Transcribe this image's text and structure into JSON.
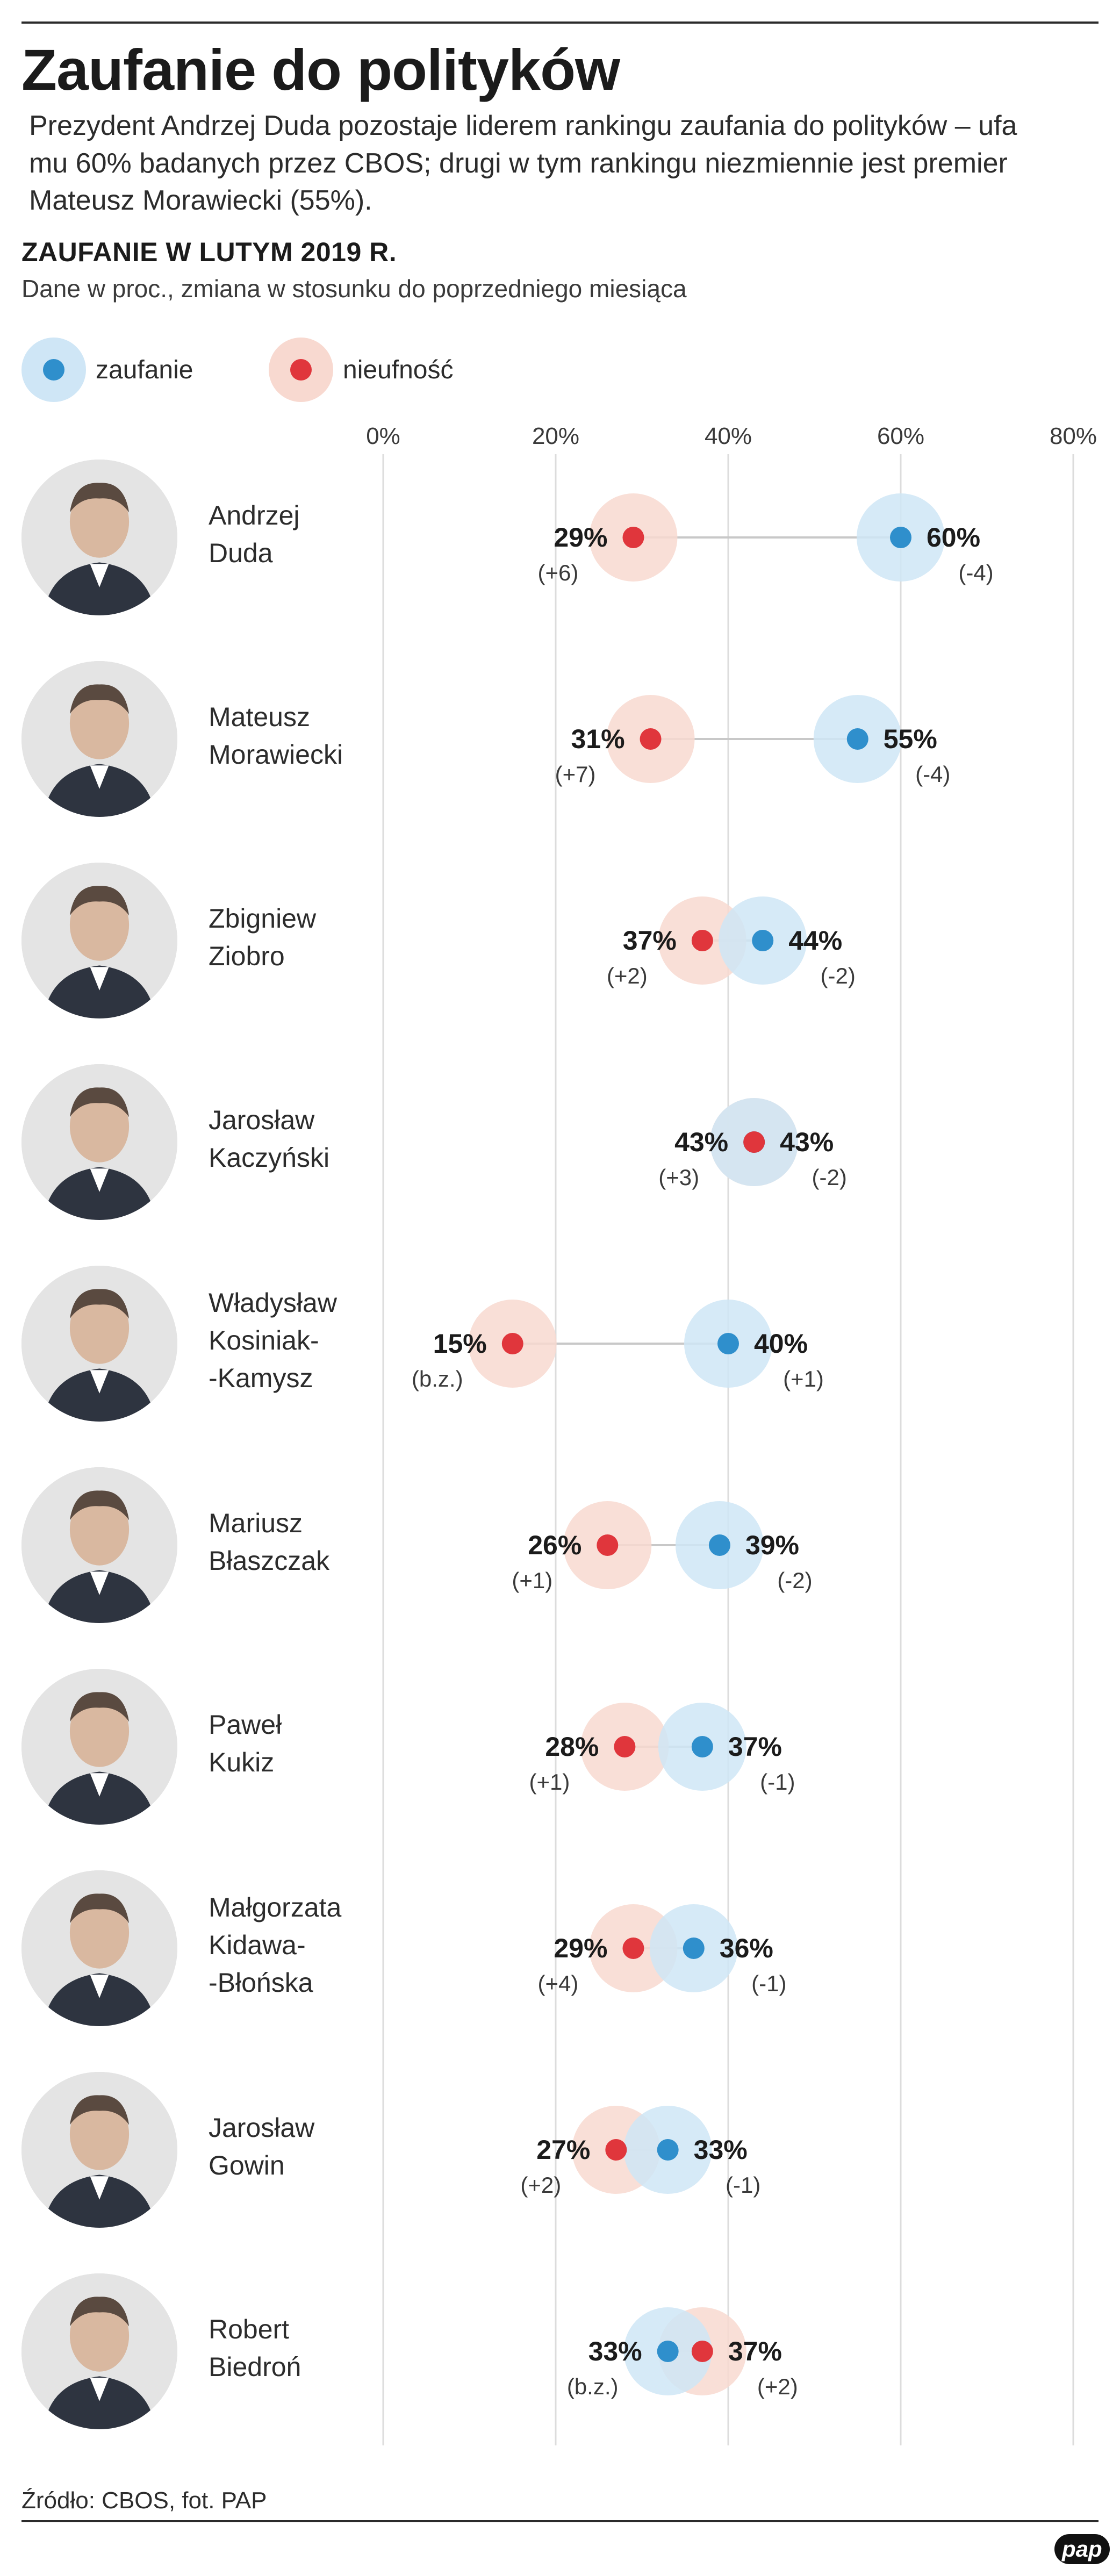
{
  "title": "Zaufanie do polityków",
  "intro": "Prezydent Andrzej Duda pozostaje liderem rankingu zaufania do polityków – ufa mu 60% badanych przez CBOS; drugi w tym rankingu niezmiennie jest premier Mateusz Morawiecki (55%).",
  "subhead": "ZAUFANIE W LUTYM 2019 R.",
  "subnote": "Dane w proc., zmiana w stosunku do poprzedniego miesiąca",
  "legend": {
    "trust_label": "zaufanie",
    "distrust_label": "nieufność"
  },
  "colors": {
    "trust": "#2f8fcc",
    "trust_halo": "#cfe6f6",
    "distrust": "#e0363c",
    "distrust_halo": "#f8d9d0",
    "gridline": "#dcdcdc",
    "connector": "#c8c8c8"
  },
  "source": "Źródło: CBOS, fot. PAP",
  "logo": "pap",
  "chart_data": {
    "type": "dot-plot",
    "x_ticks": [
      "0%",
      "20%",
      "40%",
      "60%",
      "80%"
    ],
    "xlim": [
      0,
      80
    ],
    "grid": true,
    "legend_placement": "top-left",
    "series": [
      {
        "name": "zaufanie",
        "color": "#2f8fcc"
      },
      {
        "name": "nieufność",
        "color": "#e0363c"
      }
    ],
    "rows": [
      {
        "name": "Andrzej\nDuda",
        "trust": 60,
        "trust_label": "60%",
        "trust_change": "(-4)",
        "distrust": 29,
        "distrust_label": "29%",
        "distrust_change": "(+6)"
      },
      {
        "name": "Mateusz\nMorawiecki",
        "trust": 55,
        "trust_label": "55%",
        "trust_change": "(-4)",
        "distrust": 31,
        "distrust_label": "31%",
        "distrust_change": "(+7)"
      },
      {
        "name": "Zbigniew\nZiobro",
        "trust": 44,
        "trust_label": "44%",
        "trust_change": "(-2)",
        "distrust": 37,
        "distrust_label": "37%",
        "distrust_change": "(+2)"
      },
      {
        "name": "Jarosław\nKaczyński",
        "trust": 43,
        "trust_label": "43%",
        "trust_change": "(-2)",
        "distrust": 43,
        "distrust_label": "43%",
        "distrust_change": "(+3)"
      },
      {
        "name": "Władysław\nKosiniak-\n-Kamysz",
        "trust": 40,
        "trust_label": "40%",
        "trust_change": "(+1)",
        "distrust": 15,
        "distrust_label": "15%",
        "distrust_change": "(b.z.)"
      },
      {
        "name": "Mariusz\nBłaszczak",
        "trust": 39,
        "trust_label": "39%",
        "trust_change": "(-2)",
        "distrust": 26,
        "distrust_label": "26%",
        "distrust_change": "(+1)"
      },
      {
        "name": "Paweł\nKukiz",
        "trust": 37,
        "trust_label": "37%",
        "trust_change": "(-1)",
        "distrust": 28,
        "distrust_label": "28%",
        "distrust_change": "(+1)"
      },
      {
        "name": "Małgorzata\nKidawa-\n-Błońska",
        "trust": 36,
        "trust_label": "36%",
        "trust_change": "(-1)",
        "distrust": 29,
        "distrust_label": "29%",
        "distrust_change": "(+4)"
      },
      {
        "name": "Jarosław\nGowin",
        "trust": 33,
        "trust_label": "33%",
        "trust_change": "(-1)",
        "distrust": 27,
        "distrust_label": "27%",
        "distrust_change": "(+2)"
      },
      {
        "name": "Robert\nBiedroń",
        "trust": 33,
        "trust_label": "33%",
        "trust_change": "(b.z.)",
        "distrust": 37,
        "distrust_label": "37%",
        "distrust_change": "(+2)"
      }
    ]
  }
}
